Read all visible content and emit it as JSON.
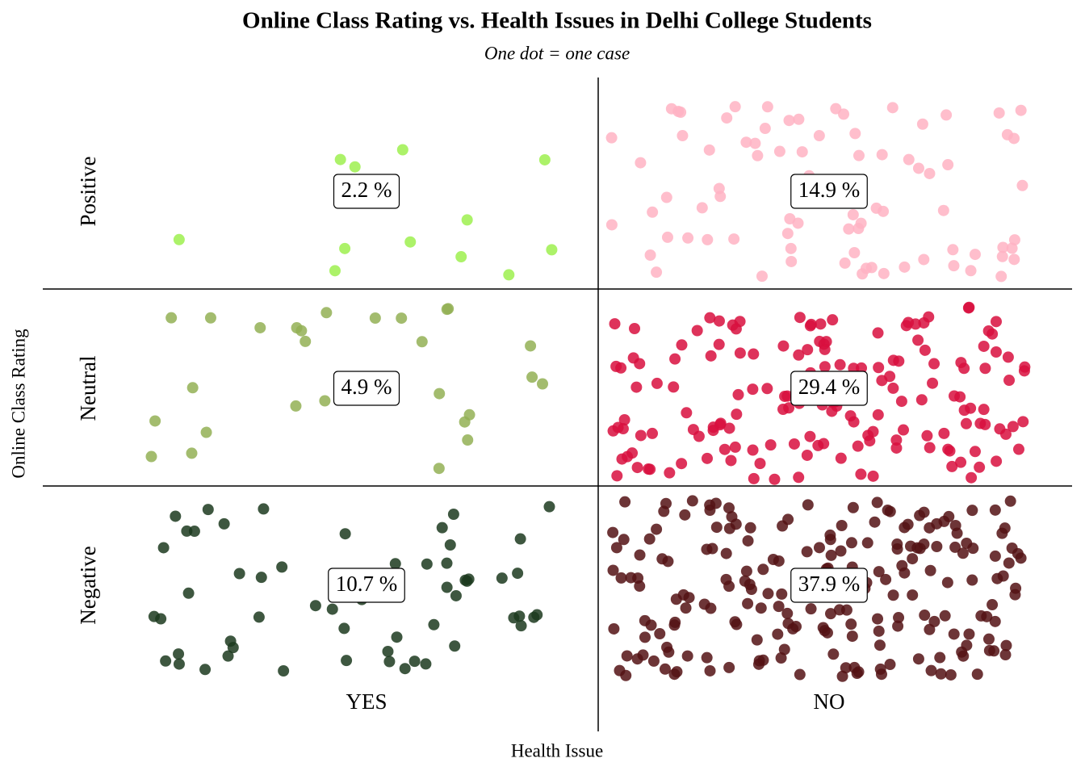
{
  "chart_data": {
    "type": "jitter",
    "title": "Online Class Rating vs. Health Issues in Delhi College Students",
    "subtitle": "One dot = one case",
    "x_label": "Health Issue",
    "y_label": "Online Class Rating",
    "columns": [
      "YES",
      "NO"
    ],
    "rows": [
      "Positive",
      "Neutral",
      "Negative"
    ],
    "values": [
      [
        2.2,
        14.9
      ],
      [
        4.9,
        29.4
      ],
      [
        10.7,
        37.9
      ]
    ],
    "value_labels": [
      [
        "2.2 %",
        "14.9 %"
      ],
      [
        "4.9 %",
        "29.4 %"
      ],
      [
        "10.7 %",
        "37.9 %"
      ]
    ],
    "counts": [
      [
        12,
        81
      ],
      [
        27,
        160
      ],
      [
        58,
        207
      ]
    ],
    "colors": [
      [
        "#9ef04f",
        "#ffb3c3"
      ],
      [
        "#93b055",
        "#d80f3e"
      ],
      [
        "#1c3a1f",
        "#541214"
      ]
    ]
  }
}
